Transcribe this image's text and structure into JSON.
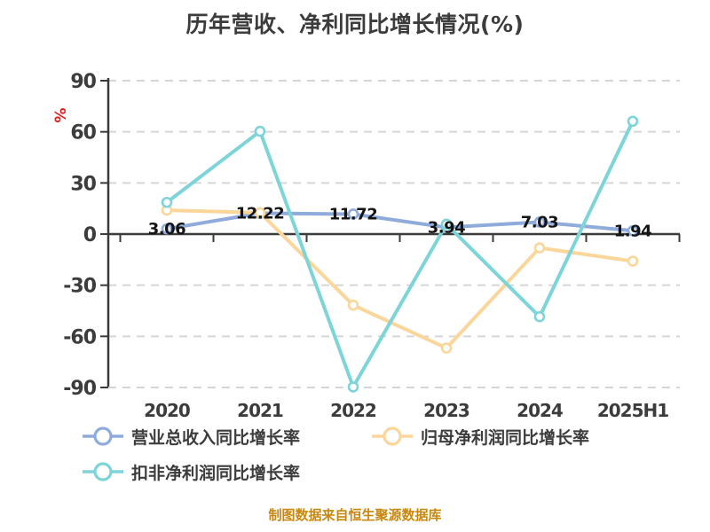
{
  "title": "历年营收、净利同比增长情况(%)",
  "y_axis": {
    "unit_label": "%",
    "unit_color": "#e01f1f",
    "ticks": [
      90,
      60,
      30,
      0,
      -30,
      -60,
      -90
    ],
    "min": -90,
    "max": 90
  },
  "x_axis": {
    "categories": [
      "2020",
      "2021",
      "2022",
      "2023",
      "2024",
      "2025H1"
    ]
  },
  "chart_data": {
    "type": "line",
    "title": "历年营收、净利同比增长情况(%)",
    "xlabel": "",
    "ylabel": "%",
    "ylim": [
      -90,
      90
    ],
    "grid": "horizontal-dashed",
    "legend_position": "bottom",
    "categories": [
      "2020",
      "2021",
      "2022",
      "2023",
      "2024",
      "2025H1"
    ],
    "series": [
      {
        "name": "营业总收入同比增长率",
        "color": "#8fabdb",
        "values": [
          3.06,
          12.22,
          11.72,
          3.94,
          7.03,
          1.94
        ],
        "labels": [
          "3.06",
          "12.22",
          "11.72",
          "3.94",
          "7.03",
          "1.94"
        ],
        "labeled": true
      },
      {
        "name": "归母净利润同比增长率",
        "color": "#fad69a",
        "values": [
          14.0,
          12.5,
          -41.7,
          -66.9,
          -8.1,
          -15.9
        ],
        "labels": [],
        "labeled": false
      },
      {
        "name": "扣非净利润同比增长率",
        "color": "#7dd4d9",
        "values": [
          18.6,
          60.3,
          -89.7,
          5.8,
          -48.5,
          66.2
        ],
        "labels": [],
        "labeled": false
      }
    ]
  },
  "legend": {
    "items": [
      {
        "label": "营业总收入同比增长率",
        "color": "#8fabdb"
      },
      {
        "label": "归母净利润同比增长率",
        "color": "#fad69a"
      },
      {
        "label": "扣非净利润同比增长率",
        "color": "#7dd4d9"
      }
    ]
  },
  "footer": {
    "source_note": "制图数据来自恒生聚源数据库"
  },
  "colors": {
    "axis": "#3a3a3a",
    "gridline": "#d6d6d6",
    "tick_label": "#3c3c3c",
    "data_label": "#141414",
    "source_note": "#c8880f",
    "background": "#ffffff"
  }
}
